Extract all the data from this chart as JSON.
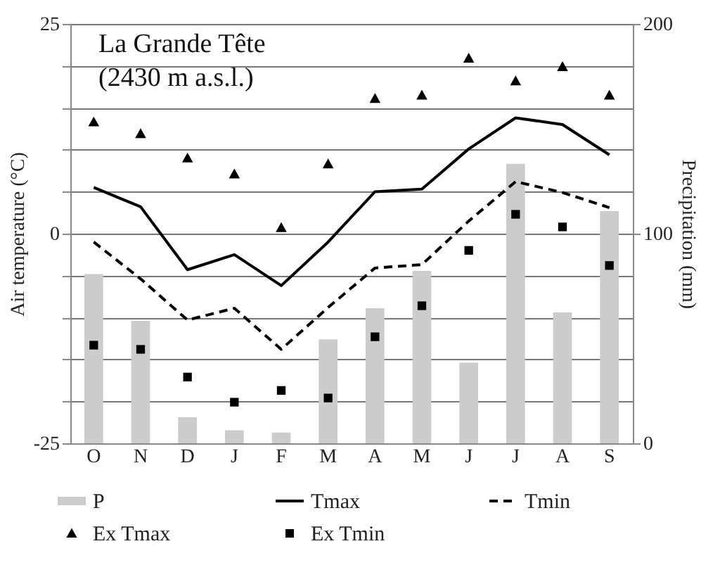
{
  "chart_data": {
    "type": "line",
    "title": "La Grande Tête",
    "subtitle": "(2430 m a.s.l.)",
    "ylabel": "Air temperature (°C)",
    "y2label": "Precipitation (mm)",
    "categories": [
      "O",
      "N",
      "D",
      "J",
      "F",
      "M",
      "A",
      "M",
      "J",
      "J",
      "A",
      "S"
    ],
    "series": [
      {
        "name": "P",
        "type": "bar",
        "axis": "y2",
        "color": "#cccccc",
        "values": [
          80.7,
          58.4,
          12.4,
          6.2,
          5.1,
          49.6,
          64.4,
          82.2,
          38.4,
          133.3,
          62.4,
          110.7
        ]
      },
      {
        "name": "Tmax",
        "line_style": "solid",
        "marker": "none",
        "color": "#000000",
        "values": [
          5.5,
          3.2,
          -4.3,
          -2.5,
          -6.2,
          -1.0,
          5.0,
          5.3,
          10.1,
          13.8,
          13.0,
          9.4
        ]
      },
      {
        "name": "Tmin",
        "line_style": "dashed",
        "marker": "none",
        "color": "#000000",
        "values": [
          -1.0,
          -5.4,
          -10.3,
          -8.9,
          -13.8,
          -8.8,
          -4.1,
          -3.7,
          1.5,
          6.2,
          4.9,
          3.1
        ]
      },
      {
        "name": "Ex Tmax",
        "type": "scatter",
        "marker": "triangle",
        "color": "#000000",
        "values": [
          13.3,
          11.9,
          9.0,
          7.1,
          0.7,
          8.3,
          16.1,
          16.5,
          20.9,
          18.2,
          19.9,
          16.5
        ]
      },
      {
        "name": "Ex Tmin",
        "type": "scatter",
        "marker": "square",
        "color": "#000000",
        "values": [
          -13.3,
          -13.8,
          -17.1,
          -20.1,
          -18.7,
          -19.6,
          -12.3,
          -8.6,
          -2.0,
          2.3,
          0.8,
          -3.8
        ]
      }
    ],
    "ylim": [
      -25,
      25
    ],
    "yticks": [
      -25,
      {
        "value": -20,
        "label": null
      },
      {
        "value": -15,
        "label": null
      },
      {
        "value": -10,
        "label": null
      },
      {
        "value": -5,
        "label": null
      },
      0,
      {
        "value": 5,
        "label": null
      },
      {
        "value": 10,
        "label": null
      },
      {
        "value": 15,
        "label": null
      },
      {
        "value": 20,
        "label": null
      },
      25
    ],
    "y2lim": [
      0,
      200
    ],
    "y2ticks": [
      0,
      100,
      200
    ],
    "grid": "y",
    "legend": "bottom"
  }
}
